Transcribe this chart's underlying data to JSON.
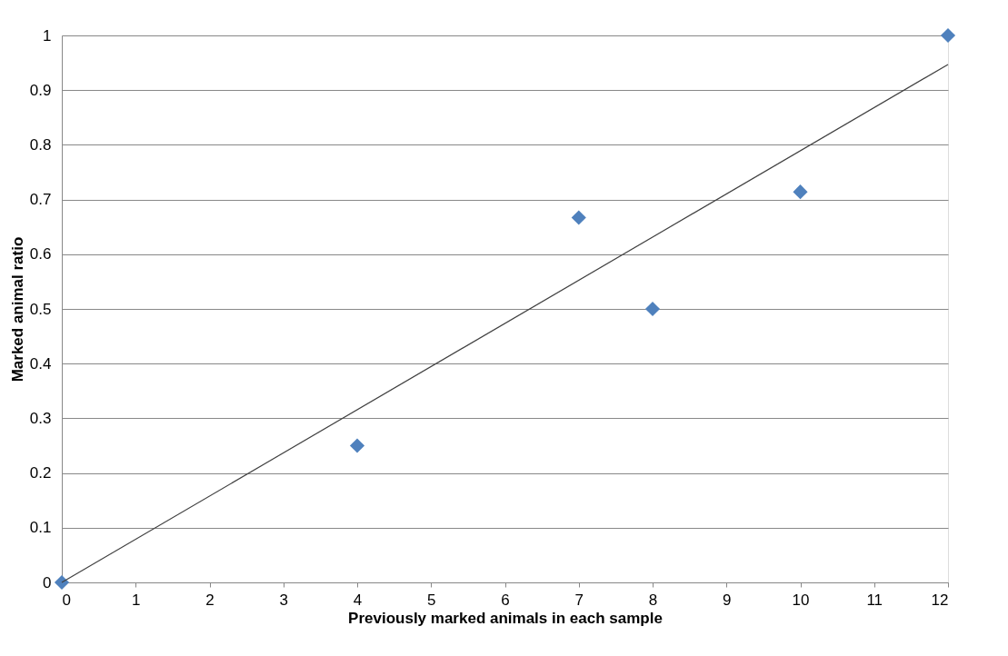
{
  "chart_data": {
    "type": "scatter",
    "xlabel": "Previously marked animals in each sample",
    "ylabel": "Marked animal ratio",
    "xlim": [
      0,
      12
    ],
    "xticks": [
      0,
      1,
      2,
      3,
      4,
      5,
      6,
      7,
      8,
      9,
      10,
      11,
      12
    ],
    "ylim": [
      0,
      1
    ],
    "yticks": [
      0,
      0.1,
      0.2,
      0.3,
      0.4,
      0.5,
      0.6,
      0.7,
      0.8,
      0.9,
      1
    ],
    "grid": "y",
    "series": [
      {
        "marker": "diamond",
        "color": "#4f81bd",
        "x": [
          0,
          4,
          7,
          8,
          10,
          12
        ],
        "values": [
          0,
          0.25,
          0.667,
          0.5,
          0.714,
          1
        ]
      },
      {
        "type": "line",
        "color": "#404040",
        "x": [
          0,
          12
        ],
        "values": [
          0,
          0.947
        ],
        "line_style": "solid"
      }
    ]
  }
}
